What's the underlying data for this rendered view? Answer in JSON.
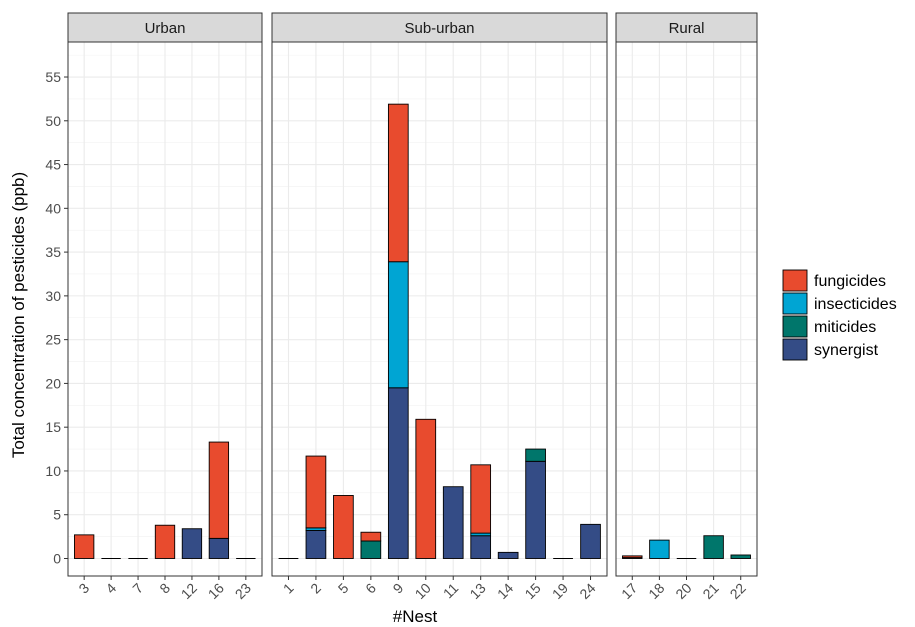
{
  "chart_data": {
    "type": "bar",
    "stacked": true,
    "xlabel": "#Nest",
    "ylabel": "Total concentration of pesticides (ppb)",
    "ylim": [
      -2,
      59
    ],
    "yticks": [
      0,
      5,
      10,
      15,
      20,
      25,
      30,
      35,
      40,
      45,
      50,
      55
    ],
    "grid": true,
    "legend_position": "right",
    "series": [
      {
        "name": "fungicides",
        "color": "#E84B2E"
      },
      {
        "name": "insecticides",
        "color": "#00A5D3"
      },
      {
        "name": "miticides",
        "color": "#00766B"
      },
      {
        "name": "synergist",
        "color": "#344C86"
      }
    ],
    "panels": [
      {
        "title": "Urban",
        "nests": [
          {
            "label": "3",
            "values": {
              "synergist": 0,
              "miticides": 0,
              "insecticides": 0,
              "fungicides": 2.7
            }
          },
          {
            "label": "4",
            "values": {
              "synergist": 0,
              "miticides": 0,
              "insecticides": 0,
              "fungicides": 0
            }
          },
          {
            "label": "7",
            "values": {
              "synergist": 0,
              "miticides": 0,
              "insecticides": 0,
              "fungicides": 0
            }
          },
          {
            "label": "8",
            "values": {
              "synergist": 0,
              "miticides": 0,
              "insecticides": 0,
              "fungicides": 3.8
            }
          },
          {
            "label": "12",
            "values": {
              "synergist": 3.4,
              "miticides": 0,
              "insecticides": 0,
              "fungicides": 0
            }
          },
          {
            "label": "16",
            "values": {
              "synergist": 2.3,
              "miticides": 0,
              "insecticides": 0,
              "fungicides": 11.0
            }
          },
          {
            "label": "23",
            "values": {
              "synergist": 0,
              "miticides": 0,
              "insecticides": 0,
              "fungicides": 0
            }
          }
        ]
      },
      {
        "title": "Sub-urban",
        "nests": [
          {
            "label": "1",
            "values": {
              "synergist": 0,
              "miticides": 0,
              "insecticides": 0,
              "fungicides": 0
            }
          },
          {
            "label": "2",
            "values": {
              "synergist": 3.2,
              "miticides": 0,
              "insecticides": 0.3,
              "fungicides": 8.2
            }
          },
          {
            "label": "5",
            "values": {
              "synergist": 0,
              "miticides": 0,
              "insecticides": 0,
              "fungicides": 7.2
            }
          },
          {
            "label": "6",
            "values": {
              "synergist": 0,
              "miticides": 2.0,
              "insecticides": 0,
              "fungicides": 1.0
            }
          },
          {
            "label": "9",
            "values": {
              "synergist": 19.5,
              "miticides": 0,
              "insecticides": 14.4,
              "fungicides": 18.0
            }
          },
          {
            "label": "10",
            "values": {
              "synergist": 0,
              "miticides": 0,
              "insecticides": 0,
              "fungicides": 15.9
            }
          },
          {
            "label": "11",
            "values": {
              "synergist": 8.2,
              "miticides": 0,
              "insecticides": 0,
              "fungicides": 0
            }
          },
          {
            "label": "13",
            "values": {
              "synergist": 2.6,
              "miticides": 0,
              "insecticides": 0.3,
              "fungicides": 7.8
            }
          },
          {
            "label": "14",
            "values": {
              "synergist": 0.7,
              "miticides": 0,
              "insecticides": 0,
              "fungicides": 0
            }
          },
          {
            "label": "15",
            "values": {
              "synergist": 11.1,
              "miticides": 1.4,
              "insecticides": 0,
              "fungicides": 0
            }
          },
          {
            "label": "19",
            "values": {
              "synergist": 0,
              "miticides": 0,
              "insecticides": 0,
              "fungicides": 0
            }
          },
          {
            "label": "24",
            "values": {
              "synergist": 3.9,
              "miticides": 0,
              "insecticides": 0,
              "fungicides": 0
            }
          }
        ]
      },
      {
        "title": "Rural",
        "nests": [
          {
            "label": "17",
            "values": {
              "synergist": 0,
              "miticides": 0,
              "insecticides": 0.1,
              "fungicides": 0.2
            }
          },
          {
            "label": "18",
            "values": {
              "synergist": 0,
              "miticides": 0,
              "insecticides": 2.1,
              "fungicides": 0
            }
          },
          {
            "label": "20",
            "values": {
              "synergist": 0,
              "miticides": 0,
              "insecticides": 0,
              "fungicides": 0
            }
          },
          {
            "label": "21",
            "values": {
              "synergist": 0,
              "miticides": 2.6,
              "insecticides": 0,
              "fungicides": 0
            }
          },
          {
            "label": "22",
            "values": {
              "synergist": 0,
              "miticides": 0.4,
              "insecticides": 0,
              "fungicides": 0
            }
          }
        ]
      }
    ]
  }
}
